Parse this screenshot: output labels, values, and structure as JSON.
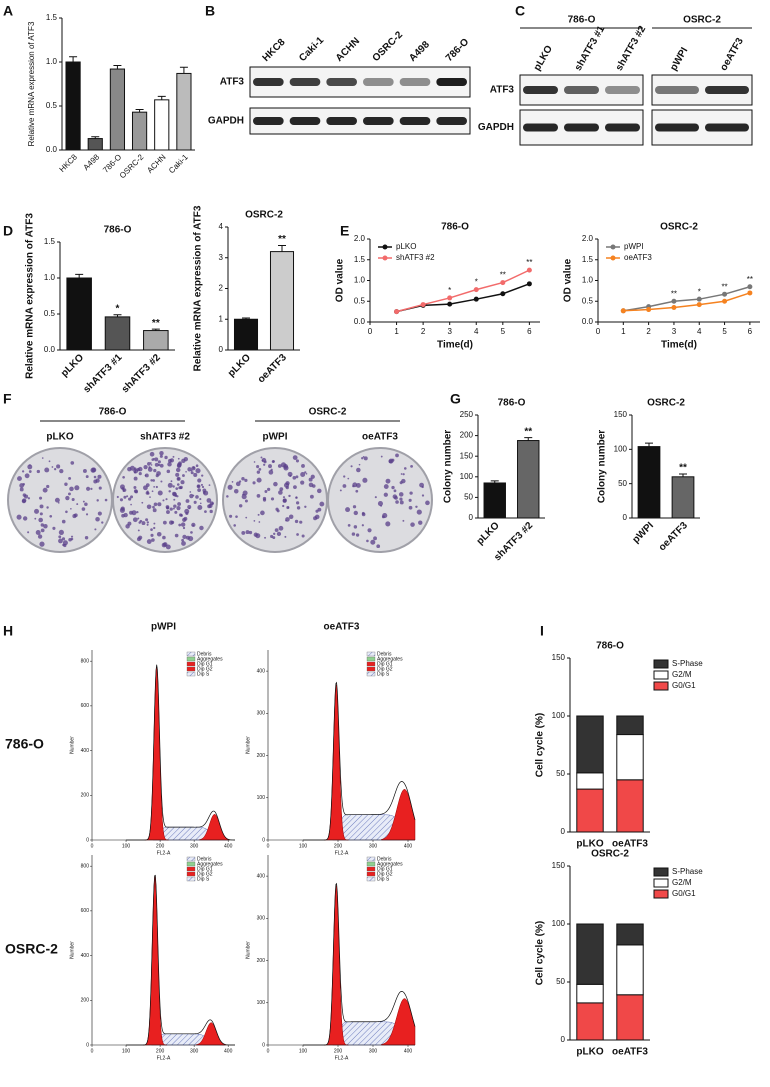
{
  "panel_labels": [
    "A",
    "B",
    "C",
    "D",
    "E",
    "F",
    "G",
    "H",
    "I"
  ],
  "chart_data": [
    {
      "type": "bar",
      "y_label": "Relative mRNA expression of ATF3",
      "categories": [
        "HKC8",
        "A498",
        "786-O",
        "OSRC-2",
        "ACHN",
        "Caki-1"
      ],
      "values": [
        1.0,
        0.13,
        0.92,
        0.43,
        0.57,
        0.87
      ],
      "errors": [
        0.06,
        0.02,
        0.04,
        0.03,
        0.04,
        0.07
      ],
      "colors": [
        "#111111",
        "#555555",
        "#888888",
        "#999999",
        "#ffffff",
        "#bbbbbb"
      ],
      "ylim": [
        0,
        1.5
      ],
      "yticks": [
        {
          "value": 0,
          "label": "0.0"
        },
        {
          "value": 0.5,
          "label": "0.5"
        },
        {
          "value": 1,
          "label": "1.0"
        },
        {
          "value": 1.5,
          "label": "1.5"
        }
      ]
    },
    {
      "type": "bar",
      "title": "786-O",
      "y_label": "Relative mRNA expression of ATF3",
      "categories": [
        "pLKO",
        "shATF3 #1",
        "shATF3 #2"
      ],
      "values": [
        1.0,
        0.46,
        0.27
      ],
      "errors": [
        0.05,
        0.03,
        0.02
      ],
      "colors": [
        "#111111",
        "#555555",
        "#aaaaaa"
      ],
      "annotations": [
        {
          "category": "shATF3 #1",
          "text": "*"
        },
        {
          "category": "shATF3 #2",
          "text": "**"
        }
      ],
      "ylim": [
        0,
        1.5
      ],
      "yticks": [
        {
          "value": 0,
          "label": "0.0"
        },
        {
          "value": 0.5,
          "label": "0.5"
        },
        {
          "value": 1,
          "label": "1.0"
        },
        {
          "value": 1.5,
          "label": "1.5"
        }
      ]
    },
    {
      "type": "bar",
      "title": "OSRC-2",
      "y_label": "Relative mRNA expression of ATF3",
      "categories": [
        "pLKO",
        "oeATF3"
      ],
      "values": [
        1.0,
        3.2
      ],
      "errors": [
        0.04,
        0.2
      ],
      "colors": [
        "#111111",
        "#cccccc"
      ],
      "annotations": [
        {
          "category": "oeATF3",
          "text": "**"
        }
      ],
      "ylim": [
        0,
        4
      ],
      "yticks": [
        0,
        1,
        2,
        3,
        4
      ]
    },
    {
      "type": "line",
      "title": "786-O",
      "x_label": "Time(d)",
      "y_label": "OD value",
      "x": [
        1,
        2,
        3,
        4,
        5,
        6
      ],
      "series": [
        {
          "name": "pLKO",
          "color": "#111111",
          "values": [
            0.25,
            0.4,
            0.43,
            0.55,
            0.68,
            0.92
          ]
        },
        {
          "name": "shATF3 #2",
          "color": "#f26b6b",
          "values": [
            0.25,
            0.42,
            0.58,
            0.78,
            0.95,
            1.25
          ]
        }
      ],
      "annotations": [
        {
          "x": 3,
          "text": "*"
        },
        {
          "x": 4,
          "text": "*"
        },
        {
          "x": 5,
          "text": "**"
        },
        {
          "x": 6,
          "text": "**"
        }
      ],
      "xlim": [
        0,
        6.4
      ],
      "xticks": [
        0,
        1,
        2,
        3,
        4,
        5,
        6
      ],
      "ylim": [
        0,
        2
      ],
      "yticks": [
        {
          "value": 0,
          "label": "0.0"
        },
        {
          "value": 0.5,
          "label": "0.5"
        },
        {
          "value": 1,
          "label": "1.0"
        },
        {
          "value": 1.5,
          "label": "1.5"
        },
        {
          "value": 2,
          "label": "2.0"
        }
      ]
    },
    {
      "type": "line",
      "title": "OSRC-2",
      "x_label": "Time(d)",
      "y_label": "OD value",
      "x": [
        1,
        2,
        3,
        4,
        5,
        6
      ],
      "series": [
        {
          "name": "pWPI",
          "color": "#777777",
          "values": [
            0.27,
            0.37,
            0.5,
            0.55,
            0.67,
            0.85
          ]
        },
        {
          "name": "oeATF3",
          "color": "#f58220",
          "values": [
            0.27,
            0.3,
            0.35,
            0.42,
            0.5,
            0.7
          ]
        }
      ],
      "annotations": [
        {
          "x": 3,
          "text": "**"
        },
        {
          "x": 4,
          "text": "*"
        },
        {
          "x": 5,
          "text": "**"
        },
        {
          "x": 6,
          "text": "**"
        }
      ],
      "xlim": [
        0,
        6.4
      ],
      "xticks": [
        0,
        1,
        2,
        3,
        4,
        5,
        6
      ],
      "ylim": [
        0,
        2
      ],
      "yticks": [
        {
          "value": 0,
          "label": "0.0"
        },
        {
          "value": 0.5,
          "label": "0.5"
        },
        {
          "value": 1,
          "label": "1.0"
        },
        {
          "value": 1.5,
          "label": "1.5"
        },
        {
          "value": 2,
          "label": "2.0"
        }
      ]
    },
    {
      "type": "bar",
      "title": "786-O",
      "y_label": "Colony number",
      "categories": [
        "pLKO",
        "shATF3 #2"
      ],
      "values": [
        85,
        188
      ],
      "errors": [
        5,
        7
      ],
      "colors": [
        "#111111",
        "#666666"
      ],
      "annotations": [
        {
          "category": "shATF3 #2",
          "text": "**"
        }
      ],
      "ylim": [
        0,
        250
      ],
      "yticks": [
        0,
        50,
        100,
        150,
        200,
        250
      ]
    },
    {
      "type": "bar",
      "title": "OSRC-2",
      "y_label": "Colony number",
      "categories": [
        "pWPI",
        "oeATF3"
      ],
      "values": [
        104,
        60
      ],
      "errors": [
        5,
        4
      ],
      "colors": [
        "#111111",
        "#666666"
      ],
      "annotations": [
        {
          "category": "oeATF3",
          "text": "**"
        }
      ],
      "ylim": [
        0,
        150
      ],
      "yticks": [
        0,
        50,
        100,
        150
      ]
    },
    {
      "type": "stacked_bar",
      "title": "786-O",
      "y_label": "Cell cycle (%)",
      "categories": [
        "pLKO",
        "oeATF3"
      ],
      "series": [
        {
          "name": "G0/G1",
          "color": "#f04848",
          "values": [
            37,
            45
          ]
        },
        {
          "name": "G2/M",
          "color": "#ffffff",
          "values": [
            14,
            39
          ]
        },
        {
          "name": "S-Phase",
          "color": "#333333",
          "values": [
            49,
            16
          ]
        }
      ],
      "ylim": [
        0,
        150
      ],
      "yticks": [
        0,
        50,
        100,
        150
      ]
    },
    {
      "type": "stacked_bar",
      "title": "OSRC-2",
      "y_label": "Cell cycle (%)",
      "categories": [
        "pLKO",
        "oeATF3"
      ],
      "series": [
        {
          "name": "G0/G1",
          "color": "#f04848",
          "values": [
            32,
            39
          ]
        },
        {
          "name": "G2/M",
          "color": "#ffffff",
          "values": [
            16,
            43
          ]
        },
        {
          "name": "S-Phase",
          "color": "#333333",
          "values": [
            52,
            18
          ]
        }
      ],
      "ylim": [
        0,
        150
      ],
      "yticks": [
        0,
        50,
        100,
        150
      ]
    }
  ],
  "blots": [
    {
      "lanes": [
        "HKC8",
        "Caki-1",
        "ACHN",
        "OSRC-2",
        "A498",
        "786-O"
      ],
      "rows": [
        "ATF3",
        "GAPDH"
      ]
    },
    {
      "groups": [
        {
          "name": "786-O",
          "lanes": [
            "pLKO",
            "shATF3 #1",
            "shATF3 #2"
          ]
        },
        {
          "name": "OSRC-2",
          "lanes": [
            "pWPI",
            "oeATF3"
          ]
        }
      ],
      "rows": [
        "ATF3",
        "GAPDH"
      ]
    }
  ],
  "colony": {
    "groups": [
      {
        "name": "786-O",
        "samples": [
          "pLKO",
          "shATF3 #2"
        ]
      },
      {
        "name": "OSRC-2",
        "samples": [
          "pWPI",
          "oeATF3"
        ]
      }
    ]
  },
  "flow": {
    "columns": [
      "pWPI",
      "oeATF3"
    ],
    "rows": [
      "786-O",
      "OSRC-2"
    ],
    "x_label": "FL2-A",
    "y_label": "Number",
    "legend": [
      "Debris",
      "Aggregates",
      "Dip G1",
      "Dip G2",
      "Dip S"
    ],
    "xlim": [
      0,
      420
    ],
    "xticks": [
      0,
      100,
      200,
      300,
      400
    ],
    "plots": [
      {
        "ylim": [
          0,
          850
        ],
        "yticks": [
          0,
          200,
          400,
          600,
          800
        ],
        "peaks_x": [
          190,
          360
        ],
        "peaks_height": [
          780,
          115
        ]
      },
      {
        "ylim": [
          0,
          450
        ],
        "yticks": [
          0,
          100,
          200,
          300,
          400
        ],
        "peaks_x": [
          195,
          390
        ],
        "peaks_height": [
          370,
          120
        ]
      },
      {
        "ylim": [
          0,
          850
        ],
        "yticks": [
          0,
          200,
          400,
          600,
          800
        ],
        "peaks_x": [
          185,
          350
        ],
        "peaks_height": [
          760,
          100
        ]
      },
      {
        "ylim": [
          0,
          450
        ],
        "yticks": [
          0,
          100,
          200,
          300,
          400
        ],
        "peaks_x": [
          195,
          390
        ],
        "peaks_height": [
          380,
          110
        ]
      }
    ]
  }
}
